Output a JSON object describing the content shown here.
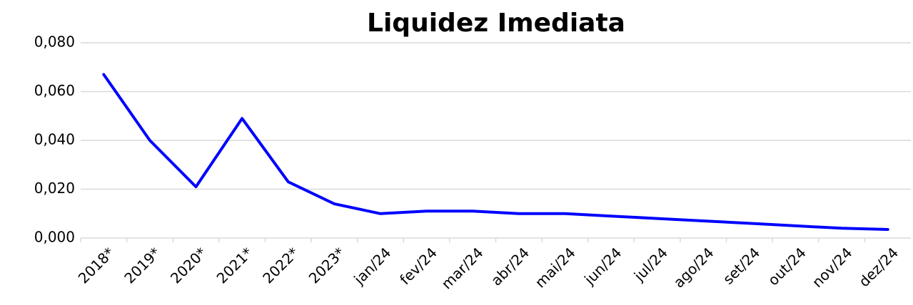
{
  "chart_data": {
    "type": "line",
    "title": "Liquidez Imediata",
    "categories": [
      "2018*",
      "2019*",
      "2020*",
      "2021*",
      "2022*",
      "2023*",
      "jan/24",
      "fev/24",
      "mar/24",
      "abr/24",
      "mai/24",
      "jun/24",
      "jul/24",
      "ago/24",
      "set/24",
      "out/24",
      "nov/24",
      "dez/24"
    ],
    "series": [
      {
        "name": "Liquidez Imediata",
        "color": "#0000ff",
        "values": [
          0.067,
          0.04,
          0.021,
          0.049,
          0.023,
          0.014,
          0.01,
          0.011,
          0.011,
          0.01,
          0.01,
          0.009,
          0.008,
          0.007,
          0.006,
          0.005,
          0.004,
          0.0035
        ]
      }
    ],
    "ylim": [
      0,
      0.08
    ],
    "yticks": [
      {
        "value": 0,
        "label": "0,000"
      },
      {
        "value": 0.02,
        "label": "0,020"
      },
      {
        "value": 0.04,
        "label": "0,040"
      },
      {
        "value": 0.06,
        "label": "0,060"
      },
      {
        "value": 0.08,
        "label": "0,080"
      }
    ],
    "grid": true
  }
}
